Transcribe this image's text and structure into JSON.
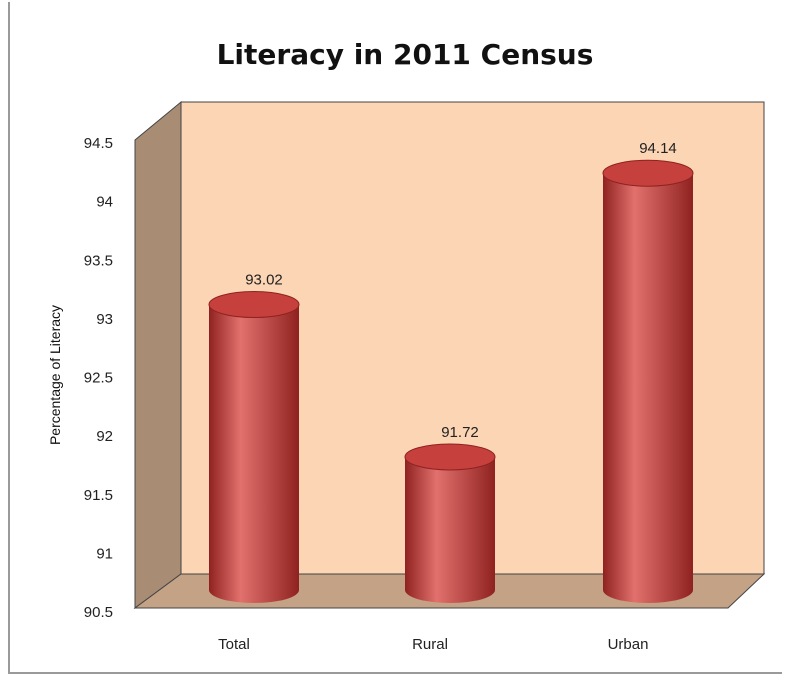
{
  "chart_data": {
    "type": "bar",
    "title": "Literacy in 2011 Census",
    "xlabel": "",
    "ylabel": "Percentage of Literacy",
    "categories": [
      "Total",
      "Rural",
      "Urban"
    ],
    "series": [
      {
        "values": [
          93.02,
          91.72,
          94.14
        ]
      }
    ],
    "data_labels": [
      "93.02",
      "91.72",
      "94.14"
    ],
    "ylim": [
      90.5,
      94.5
    ],
    "yticks": [
      "90.5",
      "91",
      "91.5",
      "92",
      "92.5",
      "93",
      "93.5",
      "94",
      "94.5"
    ],
    "grid": false,
    "legend": "none",
    "style": "3d-cylinder",
    "colors": {
      "bar": "#c6403d",
      "bar_dark": "#8f2220",
      "bar_light": "#e2716d",
      "back_wall": "#fcd5b5",
      "side_wall": "#a88c74",
      "floor": "#c3a286"
    }
  }
}
